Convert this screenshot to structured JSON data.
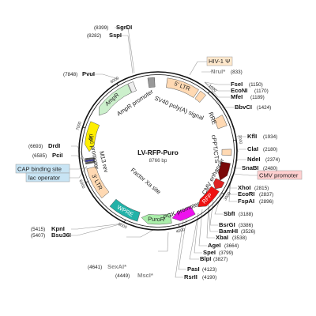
{
  "plasmid": {
    "name": "LV-RFP-Puro",
    "size": "8766 bp",
    "length": 8766
  },
  "ticks": [
    {
      "pos": 1000,
      "label": "1000"
    },
    {
      "pos": 2000,
      "label": "2000"
    },
    {
      "pos": 3000,
      "label": "3000"
    },
    {
      "pos": 4000,
      "label": "4000"
    },
    {
      "pos": 5000,
      "label": "5000"
    },
    {
      "pos": 6000,
      "label": "6000"
    },
    {
      "pos": 7000,
      "label": "7000"
    },
    {
      "pos": 8000,
      "label": "8000"
    }
  ],
  "features": [
    {
      "id": "ltr5",
      "label": "5' LTR",
      "start": 180,
      "end": 820,
      "dir": 1,
      "color": "#ffd9b3",
      "arrow": false
    },
    {
      "id": "psi",
      "label": "",
      "start": 860,
      "end": 990,
      "dir": 1,
      "color": "#ffd9b3",
      "arrow": false
    },
    {
      "id": "rre",
      "label": "",
      "start": 1480,
      "end": 1700,
      "dir": 1,
      "color": "#ffd9b3",
      "arrow": false
    },
    {
      "id": "cppt",
      "label": "",
      "start": 2160,
      "end": 2280,
      "dir": 1,
      "color": "#ffd9b3",
      "arrow": false
    },
    {
      "id": "cmv-enh",
      "label": "",
      "start": 2430,
      "end": 2810,
      "dir": 1,
      "color": "#7a0a0a",
      "arrow": true
    },
    {
      "id": "cmv-prom",
      "label": "",
      "start": 2810,
      "end": 3010,
      "dir": 1,
      "color": "#dd2222",
      "arrow": true
    },
    {
      "id": "rfp",
      "label": "RFP",
      "start": 3010,
      "end": 3520,
      "dir": 1,
      "color": "#ee1111",
      "arrow": true
    },
    {
      "id": "pgk",
      "label": "",
      "start": 3640,
      "end": 4090,
      "dir": 1,
      "color": "#ee11ee",
      "arrow": true
    },
    {
      "id": "puror",
      "label": "PuroR",
      "start": 4120,
      "end": 4720,
      "dir": 1,
      "color": "#aaeeaa",
      "arrow": true
    },
    {
      "id": "wpre",
      "label": "WPRE",
      "start": 4780,
      "end": 5380,
      "dir": 1,
      "color": "#22b2a8",
      "arrow": false
    },
    {
      "id": "ltr3",
      "label": "3' LTR",
      "start": 5600,
      "end": 6230,
      "dir": 1,
      "color": "#ffd9b3",
      "arrow": false
    },
    {
      "id": "lacop",
      "label": "",
      "start": 6320,
      "end": 6352,
      "dir": 1,
      "color": "#555555",
      "arrow": false
    },
    {
      "id": "capbs",
      "label": "",
      "start": 6362,
      "end": 6394,
      "dir": 1,
      "color": "#3a3aaa",
      "arrow": false
    },
    {
      "id": "lacprom",
      "label": "",
      "start": 6402,
      "end": 6430,
      "dir": -1,
      "color": "#555555",
      "arrow": false
    },
    {
      "id": "ori",
      "label": "ori",
      "start": 6560,
      "end": 7150,
      "dir": -1,
      "color": "#ffee00",
      "arrow": true
    },
    {
      "id": "ampr",
      "label": "AmpR",
      "start": 7330,
      "end": 8170,
      "dir": -1,
      "color": "#ccf0cc",
      "arrow": true
    },
    {
      "id": "amprprom",
      "label": "",
      "start": 8180,
      "end": 8285,
      "dir": -1,
      "color": "#eeeeee",
      "arrow": false
    },
    {
      "id": "sv40",
      "label": "",
      "start": 8570,
      "end": 8700,
      "dir": 1,
      "color": "#999999",
      "arrow": false
    }
  ],
  "inner_labels": [
    {
      "id": "sv40-polya",
      "text": "SV40 poly(A) signal"
    },
    {
      "id": "ampr-promoter",
      "text": "AmpR promoter"
    },
    {
      "id": "rre",
      "text": "RRE"
    },
    {
      "id": "cppt-cts",
      "text": "cPPT/CTS"
    },
    {
      "id": "cmv-enhancer",
      "text": "CMV enhancer"
    },
    {
      "id": "pgk-promoter",
      "text": "PGK promoter"
    },
    {
      "id": "factor-xa",
      "text": "Factor Xa site"
    },
    {
      "id": "m13-rev",
      "text": "M13 rev"
    },
    {
      "id": "lac-promoter",
      "text": "lac promoter"
    }
  ],
  "boxed_labels": [
    {
      "id": "hiv1-psi",
      "text": "HIV-1 Ψ",
      "fill": "#ffe8cc",
      "stroke": "#999999"
    },
    {
      "id": "cmv-promoter",
      "text": "CMV promoter",
      "fill": "#ffd0d0",
      "stroke": "#999999"
    },
    {
      "id": "cap-binding-site",
      "text": "CAP binding site",
      "fill": "#c8e4f4",
      "stroke": "#999999"
    },
    {
      "id": "lac-operator",
      "text": "lac operator",
      "fill": "#c8e4f4",
      "stroke": "#999999"
    }
  ],
  "sites_right": [
    {
      "name": "NruI*",
      "pos": "(833)",
      "gray": true
    },
    {
      "name": "FseI",
      "pos": "(1150)"
    },
    {
      "name": "EcoNI",
      "pos": "(1170)"
    },
    {
      "name": "MfeI",
      "pos": "(1189)"
    },
    {
      "name": "BbvCI",
      "pos": "(1424)"
    },
    {
      "name": "KflI",
      "pos": "(1934)"
    },
    {
      "name": "ClaI",
      "pos": "(2180)"
    },
    {
      "name": "NdeI",
      "pos": "(2374)"
    },
    {
      "name": "SnaBI",
      "pos": "(2480)"
    },
    {
      "name": "XhoI",
      "pos": "(2815)"
    },
    {
      "name": "EcoRI",
      "pos": "(2837)"
    },
    {
      "name": "FspAI",
      "pos": "(2896)"
    },
    {
      "name": "SbfI",
      "pos": "(3188)"
    },
    {
      "name": "BsrGI",
      "pos": "(3386)"
    },
    {
      "name": "BamHI",
      "pos": "(3526)"
    },
    {
      "name": "XbaI",
      "pos": "(3538)"
    },
    {
      "name": "AgeI",
      "pos": "(3664)"
    },
    {
      "name": "SpeI",
      "pos": "(3799)"
    },
    {
      "name": "BlpI",
      "pos": "(3827)"
    },
    {
      "name": "PasI",
      "pos": "(4123)"
    },
    {
      "name": "RsrII",
      "pos": "(4190)"
    }
  ],
  "sites_left": [
    {
      "name": "SgrDI",
      "pos": "(8399)"
    },
    {
      "name": "SspI",
      "pos": "(8282)"
    },
    {
      "name": "PvuI",
      "pos": "(7848)"
    },
    {
      "name": "DrdI",
      "pos": "(6693)"
    },
    {
      "name": "PciI",
      "pos": "(6585)"
    },
    {
      "name": "KpnI",
      "pos": "(5415)"
    },
    {
      "name": "Bsu36I",
      "pos": "(5407)"
    },
    {
      "name": "SexAI*",
      "pos": "(4641)",
      "gray": true
    },
    {
      "name": "MscI*",
      "pos": "(4449)",
      "gray": true
    }
  ]
}
